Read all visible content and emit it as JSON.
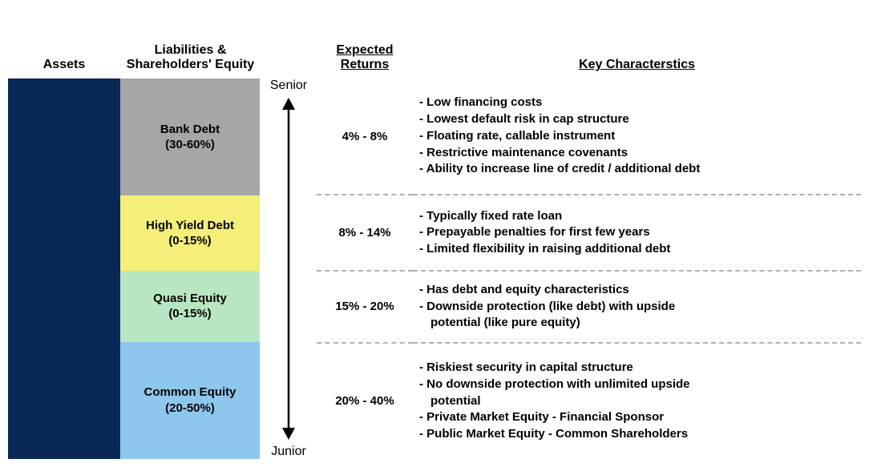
{
  "colors": {
    "assets_bar": "#0a2856",
    "bank_debt": "#a6a6a6",
    "high_yield": "#f5ee78",
    "quasi_equity": "#b9e6c2",
    "common_equity": "#8ec7ed",
    "divider": "#b0b0b0",
    "text": "#000000"
  },
  "headers": {
    "assets": "Assets",
    "liabilities": "Liabilities & Shareholders' Equity",
    "returns": "Expected Returns",
    "characteristics": "Key Characterstics"
  },
  "seniority": {
    "top": "Senior",
    "bottom": "Junior"
  },
  "rows": [
    {
      "key": "bank_debt",
      "label_line1": "Bank Debt",
      "label_line2": "(30-60%)",
      "height_weight": 28,
      "color": "#a6a6a6",
      "returns": "4% - 8%",
      "chars": [
        "- Low financing costs",
        "- Lowest default risk in cap structure",
        "- Floating rate, callable instrument",
        "- Restrictive maintenance covenants",
        "- Ability to increase line of credit / additional debt"
      ]
    },
    {
      "key": "high_yield",
      "label_line1": "High Yield Debt",
      "label_line2": "(0-15%)",
      "height_weight": 18,
      "color": "#f5ee78",
      "returns": "8% - 14%",
      "chars": [
        "- Typically fixed rate loan",
        "- Prepayable penalties for first few years",
        "- Limited flexibility in raising additional debt"
      ]
    },
    {
      "key": "quasi_equity",
      "label_line1": "Quasi Equity",
      "label_line2": "(0-15%)",
      "height_weight": 17,
      "color": "#b9e6c2",
      "returns": "15% - 20%",
      "chars": [
        "- Has debt and equity characteristics",
        "- Downside protection (like debt) with upside",
        "  potential (like pure equity)"
      ]
    },
    {
      "key": "common_equity",
      "label_line1": "Common Equity",
      "label_line2": "(20-50%)",
      "height_weight": 28,
      "color": "#8ec7ed",
      "returns": "20% - 40%",
      "chars": [
        "- Riskiest security in capital structure",
        "- No downside protection with unlimited upside",
        "  potential",
        "- Private Market Equity - Financial Sponsor",
        "- Public Market Equity - Common Shareholders"
      ]
    }
  ]
}
